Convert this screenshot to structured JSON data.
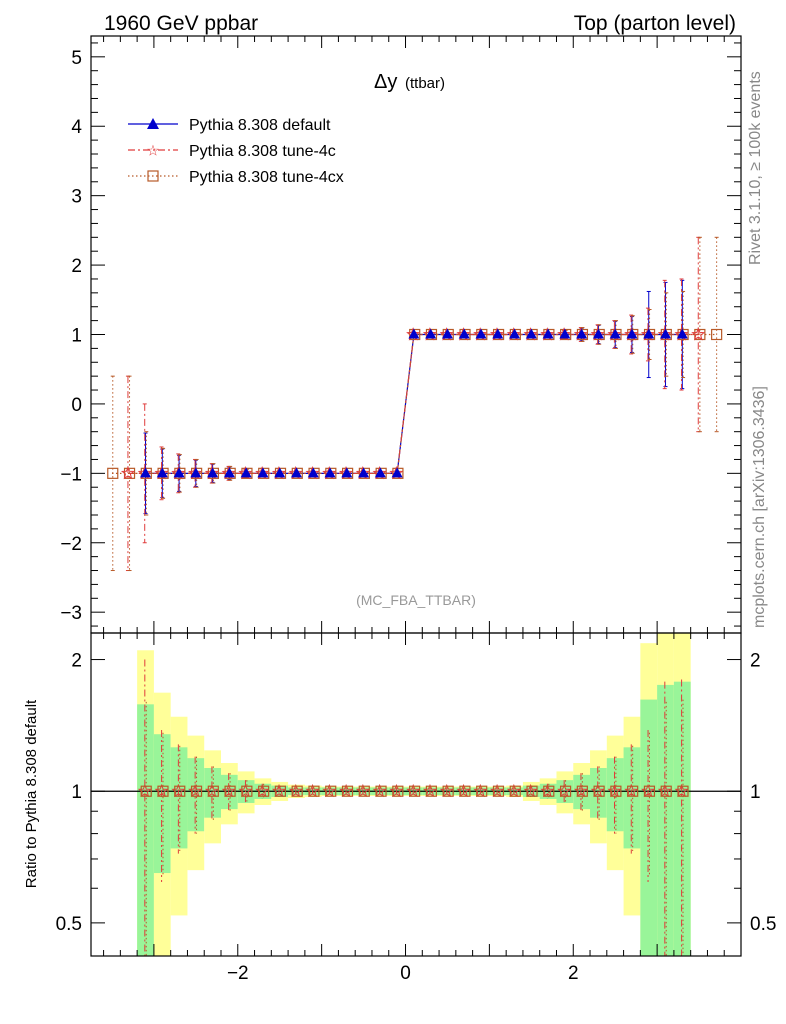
{
  "header": {
    "left": "1960 GeV ppbar",
    "right": "Top (parton level)"
  },
  "side": {
    "rivet": "Rivet 3.1.10, ≥ 100k events",
    "mcplots": "mcplots.cern.ch [arXiv:1306.3436]"
  },
  "main_title": {
    "symbol": "Δy",
    "sub": "(ttbar)"
  },
  "analysis_label": "(MC_FBA_TTBAR)",
  "ratio_ylabel": "Ratio to Pythia 8.308 default",
  "colors": {
    "default": "#0000cc",
    "tune4c": "#e03c3c",
    "tune4cx": "#b85a28",
    "band_inner": "#99f599",
    "band_outer": "#ffff99"
  },
  "chart_data": [
    {
      "type": "line",
      "panel": "main",
      "xlim": [
        -3.75,
        4.0
      ],
      "ylim": [
        -3.3,
        5.3
      ],
      "yticks": [
        -3,
        -2,
        -1,
        0,
        1,
        2,
        3,
        4,
        5
      ],
      "series": [
        {
          "name": "Pythia 8.308 default",
          "style": "solid, triangle marker",
          "x": [
            -3.1,
            -2.9,
            -2.7,
            -2.5,
            -2.3,
            -2.1,
            -1.9,
            -1.7,
            -1.5,
            -1.3,
            -1.1,
            -0.9,
            -0.7,
            -0.5,
            -0.3,
            -0.1,
            0.1,
            0.3,
            0.5,
            0.7,
            0.9,
            1.1,
            1.3,
            1.5,
            1.7,
            1.9,
            2.1,
            2.3,
            2.5,
            2.7,
            2.9,
            3.1,
            3.3
          ],
          "y": [
            -1,
            -1,
            -1,
            -1,
            -1,
            -1,
            -1,
            -1,
            -1,
            -1,
            -1,
            -1,
            -1,
            -1,
            -1,
            -1,
            1,
            1,
            1,
            1,
            1,
            1,
            1,
            1,
            1,
            1,
            1,
            1,
            1,
            1,
            1,
            1,
            1
          ],
          "yerr": [
            0.58,
            0.35,
            0.26,
            0.19,
            0.13,
            0.09,
            0.06,
            0.04,
            0.03,
            0.02,
            0.02,
            0.02,
            0.02,
            0.02,
            0.02,
            0.02,
            0.02,
            0.02,
            0.02,
            0.02,
            0.02,
            0.02,
            0.02,
            0.03,
            0.04,
            0.06,
            0.09,
            0.13,
            0.19,
            0.26,
            0.62,
            0.75,
            0.78
          ]
        },
        {
          "name": "Pythia 8.308 tune-4c",
          "style": "dash-dot, star marker",
          "x": [
            -3.3,
            -3.1,
            -2.9,
            -2.7,
            -2.5,
            -2.3,
            -2.1,
            -1.9,
            -1.7,
            -1.5,
            -1.3,
            -1.1,
            -0.9,
            -0.7,
            -0.5,
            -0.3,
            -0.1,
            0.1,
            0.3,
            0.5,
            0.7,
            0.9,
            1.1,
            1.3,
            1.5,
            1.7,
            1.9,
            2.1,
            2.3,
            2.5,
            2.7,
            2.9,
            3.1,
            3.3,
            3.5
          ],
          "y": [
            -1,
            -1,
            -1,
            -1,
            -1,
            -1,
            -1,
            -1,
            -1,
            -1,
            -1,
            -1,
            -1,
            -1,
            -1,
            -1,
            -1,
            1,
            1,
            1,
            1,
            1,
            1,
            1,
            1,
            1,
            1,
            1,
            1,
            1,
            1,
            1,
            1,
            1,
            1
          ],
          "yerr": [
            1.4,
            1.0,
            0.38,
            0.28,
            0.2,
            0.14,
            0.1,
            0.06,
            0.04,
            0.03,
            0.02,
            0.02,
            0.02,
            0.02,
            0.02,
            0.02,
            0.02,
            0.02,
            0.02,
            0.02,
            0.02,
            0.02,
            0.02,
            0.02,
            0.03,
            0.04,
            0.06,
            0.1,
            0.14,
            0.2,
            0.28,
            0.38,
            0.78,
            0.8,
            1.4
          ]
        },
        {
          "name": "Pythia 8.308 tune-4cx",
          "style": "dotted, open square marker",
          "x": [
            -3.5,
            -3.3,
            -3.1,
            -2.9,
            -2.7,
            -2.5,
            -2.3,
            -2.1,
            -1.9,
            -1.7,
            -1.5,
            -1.3,
            -1.1,
            -0.9,
            -0.7,
            -0.5,
            -0.3,
            -0.1,
            0.1,
            0.3,
            0.5,
            0.7,
            0.9,
            1.1,
            1.3,
            1.5,
            1.7,
            1.9,
            2.1,
            2.3,
            2.5,
            2.7,
            2.9,
            3.1,
            3.3,
            3.5,
            3.7
          ],
          "y": [
            -1,
            -1,
            -1,
            -1,
            -1,
            -1,
            -1,
            -1,
            -1,
            -1,
            -1,
            -1,
            -1,
            -1,
            -1,
            -1,
            -1,
            -1,
            1,
            1,
            1,
            1,
            1,
            1,
            1,
            1,
            1,
            1,
            1,
            1,
            1,
            1,
            1,
            1,
            1,
            1,
            1
          ],
          "yerr": [
            1.4,
            1.4,
            0.6,
            0.36,
            0.27,
            0.2,
            0.14,
            0.1,
            0.06,
            0.04,
            0.03,
            0.02,
            0.02,
            0.02,
            0.02,
            0.02,
            0.02,
            0.02,
            0.02,
            0.02,
            0.02,
            0.02,
            0.02,
            0.02,
            0.02,
            0.03,
            0.04,
            0.06,
            0.1,
            0.14,
            0.2,
            0.27,
            0.36,
            0.6,
            0.62,
            1.4,
            1.4
          ]
        }
      ]
    },
    {
      "type": "line",
      "panel": "ratio",
      "xlim": [
        -3.75,
        4.0
      ],
      "ylim": [
        0.42,
        2.3
      ],
      "yscale": "log",
      "xticks": [
        -2,
        0,
        2
      ],
      "yticks": [
        0.5,
        1,
        2
      ],
      "reference_line": 1,
      "band": {
        "x_edges": [
          -3.2,
          -3.0,
          -2.8,
          -2.6,
          -2.4,
          -2.2,
          -2.0,
          -1.8,
          -1.6,
          -1.4,
          -1.2,
          -1.0,
          -0.8,
          -0.6,
          -0.4,
          -0.2,
          0.0,
          0.2,
          0.4,
          0.6,
          0.8,
          1.0,
          1.2,
          1.4,
          1.6,
          1.8,
          2.0,
          2.2,
          2.4,
          2.6,
          2.8,
          3.0,
          3.2,
          3.4
        ],
        "inner": [
          0.58,
          0.35,
          0.26,
          0.19,
          0.13,
          0.09,
          0.06,
          0.04,
          0.03,
          0.02,
          0.02,
          0.02,
          0.02,
          0.02,
          0.02,
          0.02,
          0.02,
          0.02,
          0.02,
          0.02,
          0.02,
          0.02,
          0.02,
          0.03,
          0.04,
          0.06,
          0.09,
          0.13,
          0.19,
          0.26,
          0.62,
          0.75,
          0.78
        ],
        "outer": [
          1.1,
          0.68,
          0.48,
          0.34,
          0.24,
          0.16,
          0.11,
          0.07,
          0.05,
          0.035,
          0.03,
          0.025,
          0.025,
          0.025,
          0.025,
          0.025,
          0.025,
          0.025,
          0.025,
          0.025,
          0.025,
          0.025,
          0.03,
          0.05,
          0.07,
          0.11,
          0.16,
          0.24,
          0.34,
          0.48,
          1.18,
          1.35,
          1.38
        ]
      },
      "series": [
        {
          "name": "Pythia 8.308 tune-4c",
          "x": [
            -3.1,
            -2.9,
            -2.7,
            -2.5,
            -2.3,
            -2.1,
            -1.9,
            -1.7,
            -1.5,
            -1.3,
            -1.1,
            -0.9,
            -0.7,
            -0.5,
            -0.3,
            -0.1,
            0.1,
            0.3,
            0.5,
            0.7,
            0.9,
            1.1,
            1.3,
            1.5,
            1.7,
            1.9,
            2.1,
            2.3,
            2.5,
            2.7,
            2.9,
            3.1,
            3.3
          ],
          "y": [
            1,
            1,
            1,
            1,
            1,
            1,
            1,
            1,
            1,
            1,
            1,
            1,
            1,
            1,
            1,
            1,
            1,
            1,
            1,
            1,
            1,
            1,
            1,
            1,
            1,
            1,
            1,
            1,
            1,
            1,
            1,
            1,
            1
          ],
          "yerr": [
            1.0,
            0.38,
            0.28,
            0.2,
            0.14,
            0.1,
            0.06,
            0.04,
            0.03,
            0.02,
            0.02,
            0.02,
            0.02,
            0.02,
            0.02,
            0.02,
            0.02,
            0.02,
            0.02,
            0.02,
            0.02,
            0.02,
            0.02,
            0.03,
            0.04,
            0.06,
            0.1,
            0.14,
            0.2,
            0.28,
            0.38,
            0.78,
            0.8
          ]
        },
        {
          "name": "Pythia 8.308 tune-4cx",
          "x": [
            -3.1,
            -2.9,
            -2.7,
            -2.5,
            -2.3,
            -2.1,
            -1.9,
            -1.7,
            -1.5,
            -1.3,
            -1.1,
            -0.9,
            -0.7,
            -0.5,
            -0.3,
            -0.1,
            0.1,
            0.3,
            0.5,
            0.7,
            0.9,
            1.1,
            1.3,
            1.5,
            1.7,
            1.9,
            2.1,
            2.3,
            2.5,
            2.7,
            2.9,
            3.1,
            3.3
          ],
          "y": [
            1,
            1,
            1,
            1,
            1,
            1,
            1,
            1,
            1,
            1,
            1,
            1,
            1,
            1,
            1,
            1,
            1,
            1,
            1,
            1,
            1,
            1,
            1,
            1,
            1,
            1,
            1,
            1,
            1,
            1,
            1,
            1,
            1
          ],
          "yerr": [
            0.6,
            0.36,
            0.27,
            0.2,
            0.14,
            0.1,
            0.06,
            0.04,
            0.03,
            0.02,
            0.02,
            0.02,
            0.02,
            0.02,
            0.02,
            0.02,
            0.02,
            0.02,
            0.02,
            0.02,
            0.02,
            0.02,
            0.02,
            0.03,
            0.04,
            0.06,
            0.1,
            0.14,
            0.2,
            0.27,
            0.36,
            0.6,
            0.62
          ]
        }
      ]
    }
  ]
}
